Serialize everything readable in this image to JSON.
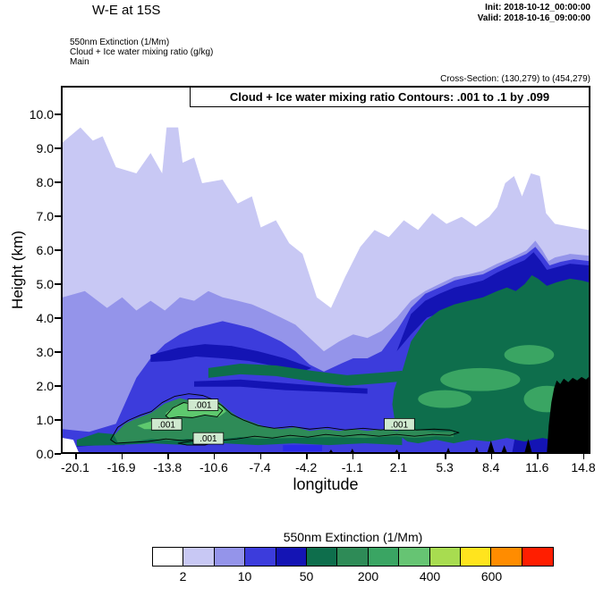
{
  "header": {
    "title": "W-E at 15S",
    "init": "Init: 2018-10-12_00:00:00",
    "valid": "Valid: 2018-10-16_09:00:00",
    "line1": "550nm Extinction   (1/Mm)",
    "line2": "Cloud + Ice water mixing ratio   (g/kg)",
    "line3": "Main",
    "cross_section": "Cross-Section: (130,279) to (454,279)"
  },
  "plot": {
    "banner": "Cloud + Ice water mixing ratio Contours: .001 to .1 by .099",
    "contour_label": ".001"
  },
  "axes": {
    "xlabel": "longitude",
    "ylabel": "Height (km)"
  },
  "colorbar": {
    "title": "550nm Extinction  (1/Mm)",
    "colors": [
      "#ffffff",
      "#c8c8f4",
      "#9494ea",
      "#3c3cdc",
      "#1414b4",
      "#0e6e4c",
      "#2e8b57",
      "#3aa563",
      "#66c473",
      "#a8dc50",
      "#ffe41e",
      "#ff8c00",
      "#ff1e00"
    ],
    "tick_labels": [
      "2",
      "10",
      "50",
      "200",
      "400",
      "600"
    ]
  },
  "chart_data": {
    "type": "heatmap",
    "title": "Cloud + Ice water mixing ratio Contours: .001 to .1 by .099",
    "xlabel": "longitude",
    "ylabel": "Height (km)",
    "x_ticks": [
      -20.1,
      -16.9,
      -13.8,
      -10.6,
      -7.4,
      -4.2,
      -1.1,
      2.1,
      5.3,
      8.4,
      11.6,
      14.8
    ],
    "y_ticks": [
      0,
      1,
      2,
      3,
      4,
      5,
      6,
      7,
      8,
      9,
      10
    ],
    "xlim": [
      -20.1,
      14.8
    ],
    "ylim": [
      0.0,
      10.8
    ],
    "fill_field": "550nm Extinction (1/Mm)",
    "fill_levels": [
      2,
      10,
      50,
      200,
      400,
      600
    ],
    "contour_field": "Cloud + Ice water mixing ratio (g/kg)",
    "contour_levels_spec": ".001 to .1 by .099",
    "contour_line_labels": [
      ".001",
      ".001",
      ".001",
      ".001"
    ],
    "notes": "W-E vertical cross-section at 15S. Filled contours: 550nm extinction, low values (white/lavender) aloft, a deep lavender cloud layer from ~4-9 km, blue/navy bands near 2-4 km, a high-extinction dark-green mass from ~0-5 km between lon 2 and 14.8, green .001 cloud+ice mixing-ratio regions near 0.3-1.5 km between lon -17.5 and 5, and black terrain below ~2.3 km near lon 12-14.8."
  }
}
